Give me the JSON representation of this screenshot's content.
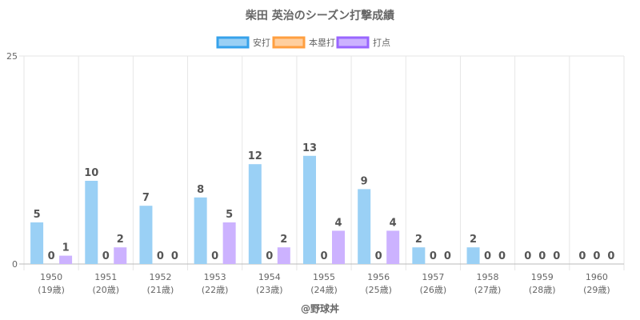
{
  "chart_data": {
    "type": "bar",
    "title": "柴田 英治のシーズン打撃成績",
    "categories": [
      "1950",
      "1951",
      "1952",
      "1953",
      "1954",
      "1955",
      "1956",
      "1957",
      "1958",
      "1959",
      "1960"
    ],
    "sublabels": [
      "(19歳)",
      "(20歳)",
      "(21歳)",
      "(22歳)",
      "(23歳)",
      "(24歳)",
      "(25歳)",
      "(26歳)",
      "(27歳)",
      "(28歳)",
      "(29歳)"
    ],
    "series": [
      {
        "name": "安打",
        "values": [
          5,
          10,
          7,
          8,
          12,
          13,
          9,
          2,
          2,
          0,
          0
        ],
        "fill": "#9ad0f5",
        "stroke": "#36a2eb"
      },
      {
        "name": "本塁打",
        "values": [
          0,
          0,
          0,
          0,
          0,
          0,
          0,
          0,
          0,
          0,
          0
        ],
        "fill": "#ffcf9f",
        "stroke": "#ff9f40"
      },
      {
        "name": "打点",
        "values": [
          1,
          2,
          0,
          5,
          2,
          4,
          4,
          0,
          0,
          0,
          0
        ],
        "fill": "#ccb2ff",
        "stroke": "#9966ff"
      }
    ],
    "ylim": [
      0,
      25
    ],
    "yticks": [
      0,
      25
    ],
    "grid": true,
    "legend_position": "top",
    "xlabel": "",
    "ylabel": ""
  },
  "credit": "@野球丼"
}
